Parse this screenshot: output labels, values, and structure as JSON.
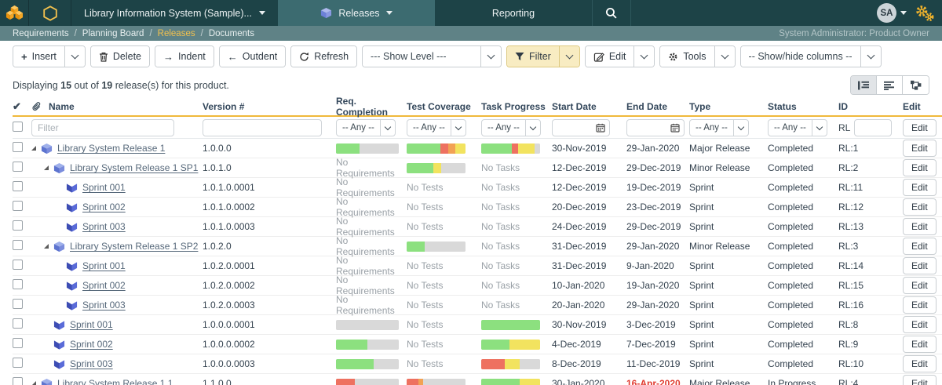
{
  "topbar": {
    "project": "Library Information System (Sample)...",
    "tab_releases": "Releases",
    "tab_reporting": "Reporting",
    "avatar": "SA"
  },
  "breadcrumb": {
    "items": [
      "Requirements",
      "Planning Board",
      "Releases",
      "Documents"
    ],
    "active_index": 2,
    "user_role": "System Administrator: Product Owner"
  },
  "toolbar": {
    "insert": "Insert",
    "delete": "Delete",
    "indent": "Indent",
    "outdent": "Outdent",
    "refresh": "Refresh",
    "show_level": "--- Show Level ---",
    "filter": "Filter",
    "edit": "Edit",
    "tools": "Tools",
    "show_hide_columns": "-- Show/hide columns --"
  },
  "info": {
    "w1": "Displaying",
    "count": "15",
    "w2": "out of",
    "total": "19",
    "w3": "release(s) for this product."
  },
  "table": {
    "headers": {
      "name": "Name",
      "version": "Version #",
      "req": "Req. Completion",
      "test": "Test Coverage",
      "task": "Task Progress",
      "start": "Start Date",
      "end": "End Date",
      "type": "Type",
      "status": "Status",
      "id": "ID",
      "edit": "Edit"
    },
    "filter": {
      "name_placeholder": "Filter",
      "any": "-- Any --",
      "id_prefix": "RL",
      "edit_label": "Edit"
    },
    "edit_label": "Edit",
    "rows": [
      {
        "level": 0,
        "expander": true,
        "icon": "release",
        "name": "Library System Release 1",
        "version": "1.0.0.0",
        "req": {
          "bar": [
            [
              "green",
              38
            ],
            [
              "gray",
              62
            ]
          ]
        },
        "test": {
          "bar": [
            [
              "green",
              57
            ],
            [
              "red",
              14
            ],
            [
              "orange",
              12
            ],
            [
              "yellow",
              17
            ]
          ]
        },
        "task": {
          "bar": [
            [
              "green",
              52
            ],
            [
              "red",
              10
            ],
            [
              "yellow",
              28
            ],
            [
              "gray",
              10
            ]
          ]
        },
        "start": "30-Nov-2019",
        "end": "29-Jan-2020",
        "type": "Major Release",
        "status": "Completed",
        "id": "RL:1"
      },
      {
        "level": 1,
        "expander": true,
        "icon": "release",
        "name": "Library System Release 1 SP1",
        "version": "1.0.1.0",
        "req": {
          "text": "No Requirements"
        },
        "test": {
          "bar": [
            [
              "green",
              45
            ],
            [
              "yellow",
              13
            ],
            [
              "gray",
              42
            ]
          ]
        },
        "task": {
          "text": "No Tasks"
        },
        "start": "12-Dec-2019",
        "end": "29-Dec-2019",
        "type": "Minor Release",
        "status": "Completed",
        "id": "RL:2"
      },
      {
        "level": 2,
        "expander": false,
        "icon": "sprint",
        "name": "Sprint 001",
        "version": "1.0.1.0.0001",
        "req": {
          "text": "No Requirements"
        },
        "test": {
          "text": "No Tests"
        },
        "task": {
          "text": "No Tasks"
        },
        "start": "12-Dec-2019",
        "end": "19-Dec-2019",
        "type": "Sprint",
        "status": "Completed",
        "id": "RL:11"
      },
      {
        "level": 2,
        "expander": false,
        "icon": "sprint",
        "name": "Sprint 002",
        "version": "1.0.1.0.0002",
        "req": {
          "text": "No Requirements"
        },
        "test": {
          "text": "No Tests"
        },
        "task": {
          "text": "No Tasks"
        },
        "start": "20-Dec-2019",
        "end": "23-Dec-2019",
        "type": "Sprint",
        "status": "Completed",
        "id": "RL:12"
      },
      {
        "level": 2,
        "expander": false,
        "icon": "sprint",
        "name": "Sprint 003",
        "version": "1.0.1.0.0003",
        "req": {
          "text": "No Requirements"
        },
        "test": {
          "text": "No Tests"
        },
        "task": {
          "text": "No Tasks"
        },
        "start": "24-Dec-2019",
        "end": "29-Dec-2019",
        "type": "Sprint",
        "status": "Completed",
        "id": "RL:13"
      },
      {
        "level": 1,
        "expander": true,
        "icon": "release",
        "name": "Library System Release 1 SP2",
        "version": "1.0.2.0",
        "req": {
          "text": "No Requirements"
        },
        "test": {
          "bar": [
            [
              "green",
              30
            ],
            [
              "gray",
              70
            ]
          ]
        },
        "task": {
          "text": "No Tasks"
        },
        "start": "31-Dec-2019",
        "end": "29-Jan-2020",
        "type": "Minor Release",
        "status": "Completed",
        "id": "RL:3"
      },
      {
        "level": 2,
        "expander": false,
        "icon": "sprint",
        "name": "Sprint 001",
        "version": "1.0.2.0.0001",
        "req": {
          "text": "No Requirements"
        },
        "test": {
          "text": "No Tests"
        },
        "task": {
          "text": "No Tasks"
        },
        "start": "31-Dec-2019",
        "end": "9-Jan-2020",
        "type": "Sprint",
        "status": "Completed",
        "id": "RL:14"
      },
      {
        "level": 2,
        "expander": false,
        "icon": "sprint",
        "name": "Sprint 002",
        "version": "1.0.2.0.0002",
        "req": {
          "text": "No Requirements"
        },
        "test": {
          "text": "No Tests"
        },
        "task": {
          "text": "No Tasks"
        },
        "start": "10-Jan-2020",
        "end": "19-Jan-2020",
        "type": "Sprint",
        "status": "Completed",
        "id": "RL:15"
      },
      {
        "level": 2,
        "expander": false,
        "icon": "sprint",
        "name": "Sprint 003",
        "version": "1.0.2.0.0003",
        "req": {
          "text": "No Requirements"
        },
        "test": {
          "text": "No Tests"
        },
        "task": {
          "text": "No Tasks"
        },
        "start": "20-Jan-2020",
        "end": "29-Jan-2020",
        "type": "Sprint",
        "status": "Completed",
        "id": "RL:16"
      },
      {
        "level": 1,
        "expander": false,
        "icon": "sprint",
        "name": "Sprint 001",
        "version": "1.0.0.0.0001",
        "req": {
          "bar": [
            [
              "gray",
              100
            ]
          ]
        },
        "test": {
          "text": "No Tests"
        },
        "task": {
          "bar": [
            [
              "green",
              100
            ]
          ]
        },
        "start": "30-Nov-2019",
        "end": "3-Dec-2019",
        "type": "Sprint",
        "status": "Completed",
        "id": "RL:8"
      },
      {
        "level": 1,
        "expander": false,
        "icon": "sprint",
        "name": "Sprint 002",
        "version": "1.0.0.0.0002",
        "req": {
          "bar": [
            [
              "green",
              50
            ],
            [
              "gray",
              50
            ]
          ]
        },
        "test": {
          "text": "No Tests"
        },
        "task": {
          "bar": [
            [
              "green",
              48
            ],
            [
              "yellow",
              52
            ]
          ]
        },
        "start": "4-Dec-2019",
        "end": "7-Dec-2019",
        "type": "Sprint",
        "status": "Completed",
        "id": "RL:9"
      },
      {
        "level": 1,
        "expander": false,
        "icon": "sprint",
        "name": "Sprint 003",
        "version": "1.0.0.0.0003",
        "req": {
          "bar": [
            [
              "green",
              60
            ],
            [
              "gray",
              40
            ]
          ]
        },
        "test": {
          "text": "No Tests"
        },
        "task": {
          "bar": [
            [
              "red",
              40
            ],
            [
              "yellow",
              25
            ],
            [
              "gray",
              35
            ]
          ]
        },
        "start": "8-Dec-2019",
        "end": "11-Dec-2019",
        "type": "Sprint",
        "status": "Completed",
        "id": "RL:10"
      },
      {
        "level": 0,
        "expander": true,
        "icon": "release",
        "name": "Library System Release 1.1",
        "version": "1.1.0.0",
        "req": {
          "bar": [
            [
              "red",
              30
            ],
            [
              "gray",
              70
            ]
          ]
        },
        "test": {
          "bar": [
            [
              "red",
              20
            ],
            [
              "orange",
              8
            ],
            [
              "gray",
              72
            ]
          ]
        },
        "task": {
          "bar": [
            [
              "green",
              65
            ],
            [
              "yellow",
              35
            ]
          ]
        },
        "start": "30-Jan-2020",
        "end": "16-Apr-2020",
        "end_overdue": true,
        "type": "Major Release",
        "status": "In Progress",
        "id": "RL:4"
      }
    ]
  },
  "colors": {
    "green": "#8ce07f",
    "red": "#ee7160",
    "orange": "#f2a254",
    "yellow": "#f2e35f",
    "gray": "#d9d9d9",
    "accent": "#f0b93b",
    "topbar": "#1d4347",
    "tab_active": "#3c6b70",
    "breadcrumb_bar": "#5f8286",
    "breadcrumb_active": "#f2c14e"
  }
}
